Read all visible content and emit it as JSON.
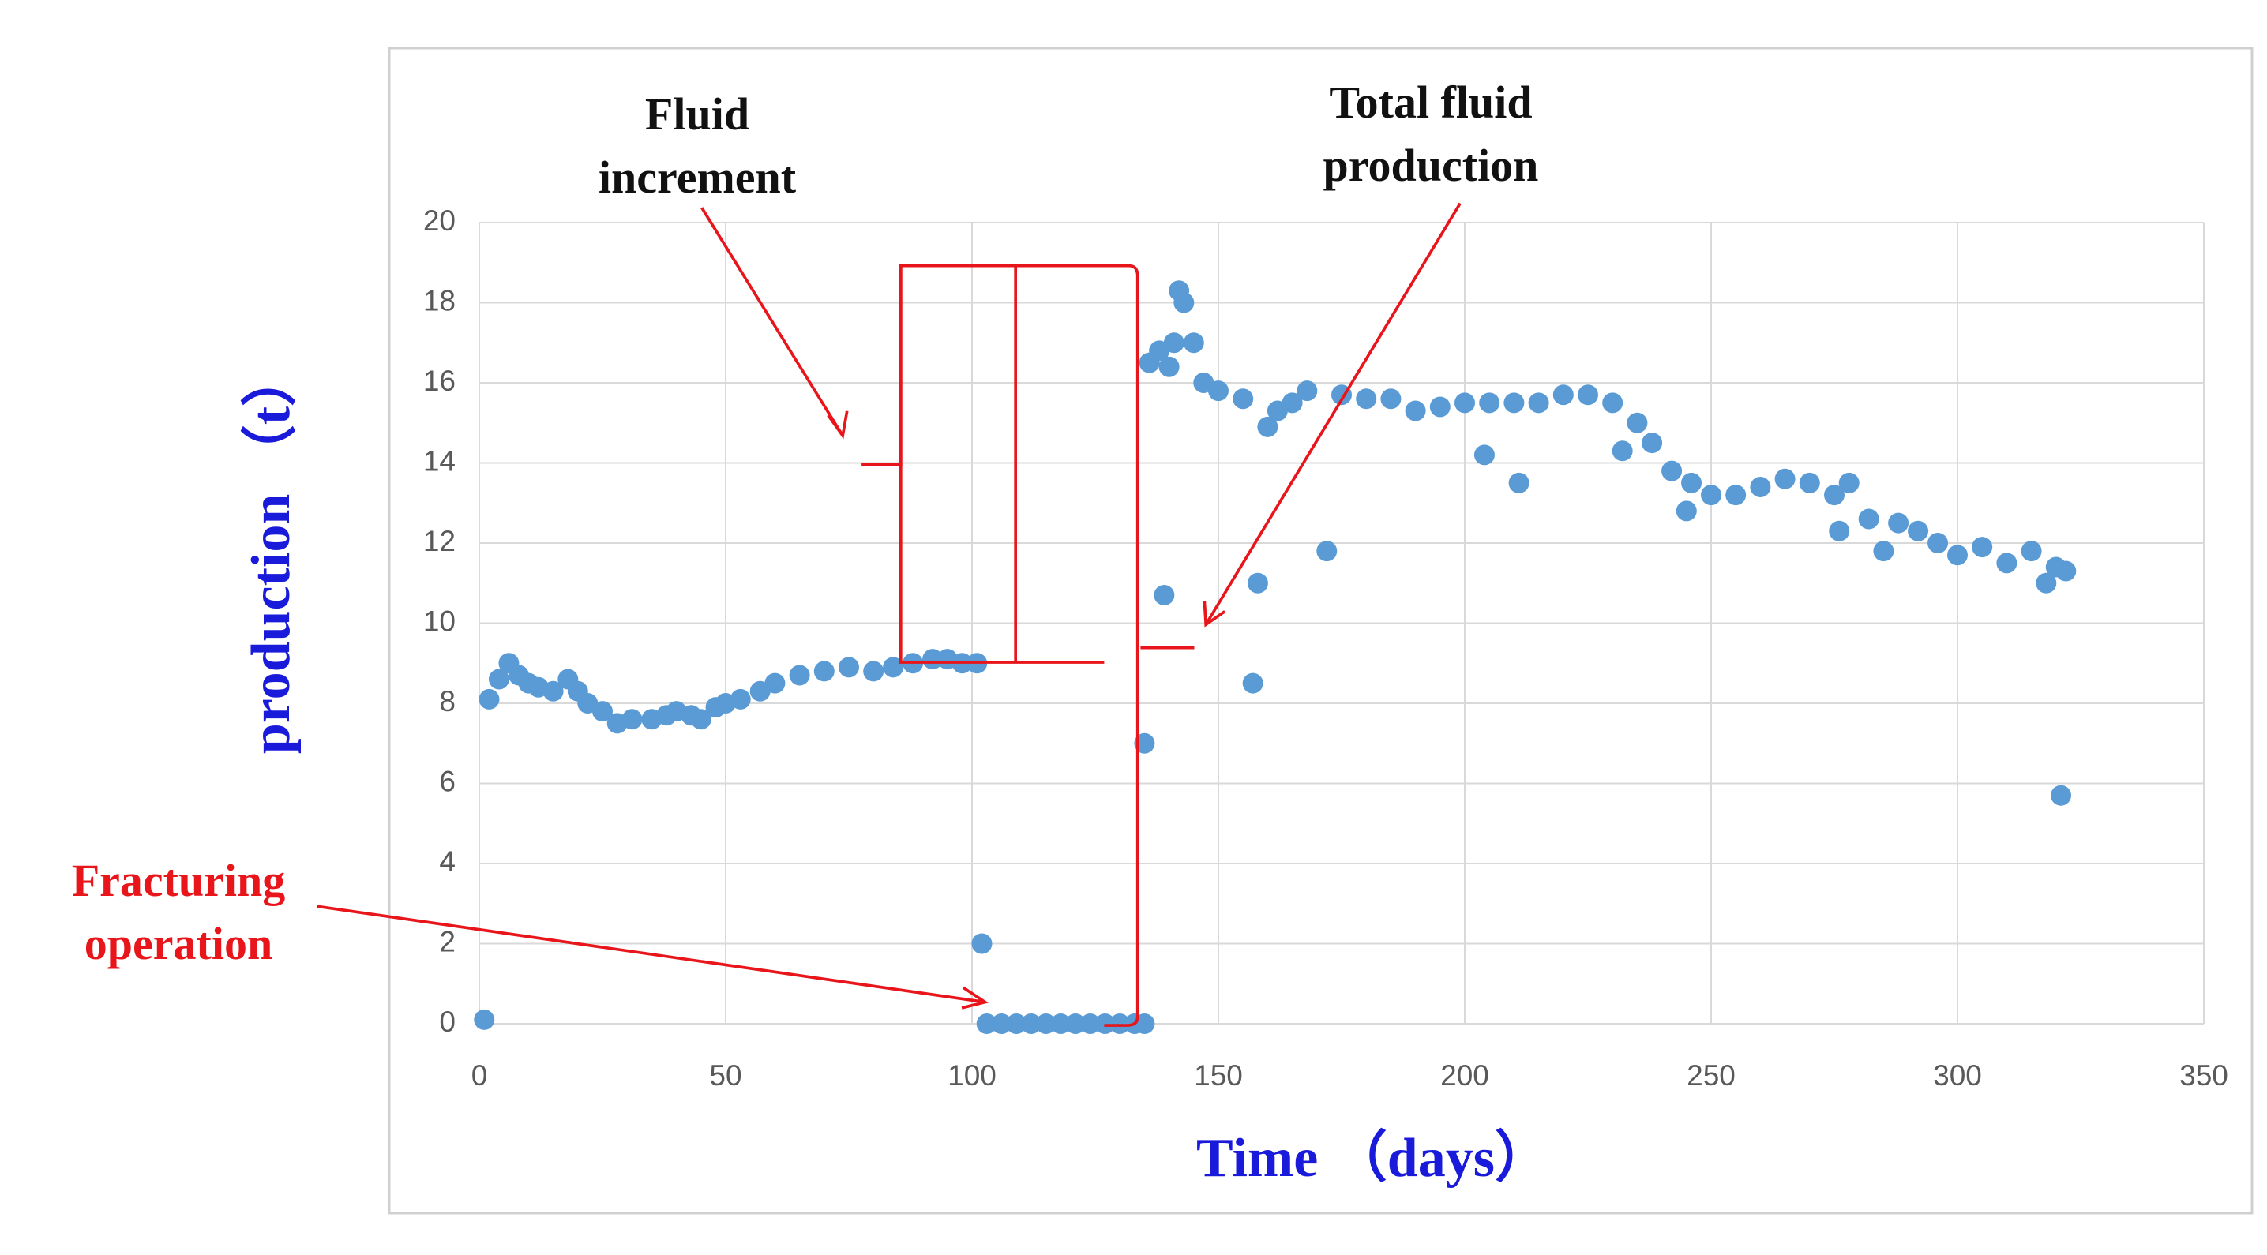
{
  "chart_data": {
    "type": "scatter",
    "x_label": "Time （days）",
    "y_label": "production （t）",
    "annotations": [
      "Fluid increment",
      "Total fluid production",
      "Fracturing operation"
    ],
    "color": "#5b9bd5",
    "grid": true,
    "xlim": [
      0,
      350
    ],
    "xticks": [
      0,
      50,
      100,
      150,
      200,
      250,
      300,
      350
    ],
    "ylim": [
      0,
      20
    ],
    "yticks": [
      0,
      2,
      4,
      6,
      8,
      10,
      12,
      14,
      16,
      18,
      20
    ],
    "x": [
      1,
      2,
      4,
      6,
      8,
      10,
      12,
      15,
      18,
      20,
      22,
      25,
      28,
      31,
      35,
      38,
      40,
      43,
      45,
      48,
      50,
      53,
      57,
      60,
      65,
      70,
      75,
      80,
      84,
      88,
      92,
      95,
      98,
      101,
      102,
      103,
      106,
      109,
      112,
      115,
      118,
      121,
      124,
      127,
      130,
      133,
      135,
      135,
      136,
      138,
      139,
      140,
      141,
      142,
      143,
      145,
      147,
      150,
      155,
      157,
      158,
      160,
      162,
      165,
      168,
      172,
      175,
      180,
      185,
      190,
      195,
      200,
      204,
      205,
      210,
      211,
      215,
      220,
      225,
      230,
      232,
      235,
      238,
      242,
      245,
      246,
      250,
      255,
      260,
      265,
      270,
      275,
      276,
      278,
      282,
      285,
      288,
      292,
      296,
      300,
      305,
      310,
      315,
      318,
      320,
      321,
      322
    ],
    "values": [
      0.1,
      8.1,
      8.6,
      9.0,
      8.7,
      8.5,
      8.4,
      8.3,
      8.6,
      8.3,
      8.0,
      7.8,
      7.5,
      7.6,
      7.6,
      7.7,
      7.8,
      7.7,
      7.6,
      7.9,
      8.0,
      8.1,
      8.3,
      8.5,
      8.7,
      8.8,
      8.9,
      8.8,
      8.9,
      9.0,
      9.1,
      9.1,
      9.0,
      9.0,
      2.0,
      0,
      0,
      0,
      0,
      0,
      0,
      0,
      0,
      0,
      0,
      0,
      0,
      7.0,
      16.5,
      16.8,
      10.7,
      16.4,
      17.0,
      18.3,
      18.0,
      17.0,
      16.0,
      15.8,
      15.6,
      8.5,
      11.0,
      14.9,
      15.3,
      15.5,
      15.8,
      11.8,
      15.7,
      15.6,
      15.6,
      15.3,
      15.4,
      15.5,
      14.2,
      15.5,
      15.5,
      13.5,
      15.5,
      15.7,
      15.7,
      15.5,
      14.3,
      15.0,
      14.5,
      13.8,
      12.8,
      13.5,
      13.2,
      13.2,
      13.4,
      13.6,
      13.5,
      13.2,
      12.3,
      13.5,
      12.6,
      11.8,
      12.5,
      12.3,
      12.0,
      11.7,
      11.9,
      11.5,
      11.8,
      11.0,
      11.4,
      5.7,
      11.3
    ]
  }
}
